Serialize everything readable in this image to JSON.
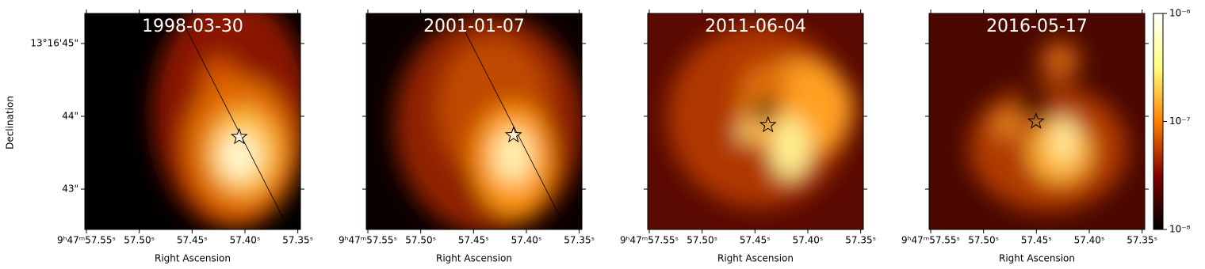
{
  "chart_data": {
    "type": "image_grid",
    "xlabel": "Right Ascension",
    "ylabel": "Declination",
    "xlim": [
      57.5515,
      57.3475
    ],
    "xticks": [
      {
        "value": 57.55,
        "label": "9ʰ47ᵐ57.55ˢ"
      },
      {
        "value": 57.5,
        "label": "57.50ˢ"
      },
      {
        "value": 57.45,
        "label": "57.45ˢ"
      },
      {
        "value": 57.4,
        "label": "57.40ˢ"
      },
      {
        "value": 57.35,
        "label": "57.35ˢ"
      }
    ],
    "ylim": [
      42.446,
      45.413
    ],
    "yticks": [
      {
        "value": 45,
        "label": "13°16'45\""
      },
      {
        "value": 44,
        "label": "44\""
      },
      {
        "value": 43,
        "label": "43\""
      }
    ],
    "panels": [
      {
        "title": "1998-03-30",
        "star": {
          "x": 57.4054,
          "y": 43.717
        },
        "slit": {
          "x": [
            57.4631,
            57.3583
          ],
          "y": [
            45.413,
            42.446
          ]
        }
      },
      {
        "title": "2001-01-07",
        "star": {
          "x": 57.4122,
          "y": 43.74
        },
        "slit": {
          "x": [
            57.4669,
            57.362
          ],
          "y": [
            45.413,
            42.446
          ]
        }
      },
      {
        "title": "2011-06-04",
        "star": {
          "x": 57.4377,
          "y": 43.88
        }
      },
      {
        "title": "2016-05-17",
        "star": {
          "x": 57.4504,
          "y": 43.93
        }
      }
    ],
    "colorbar": {
      "log": true,
      "colormap": "afmhot",
      "lim": [
        1e-08,
        1e-06
      ],
      "ticks": [
        {
          "value": 1e-08,
          "label": "10⁻⁸"
        },
        {
          "value": 1e-07,
          "label": "10⁻⁷"
        },
        {
          "value": 1e-06,
          "label": "10⁻⁶"
        }
      ]
    }
  }
}
